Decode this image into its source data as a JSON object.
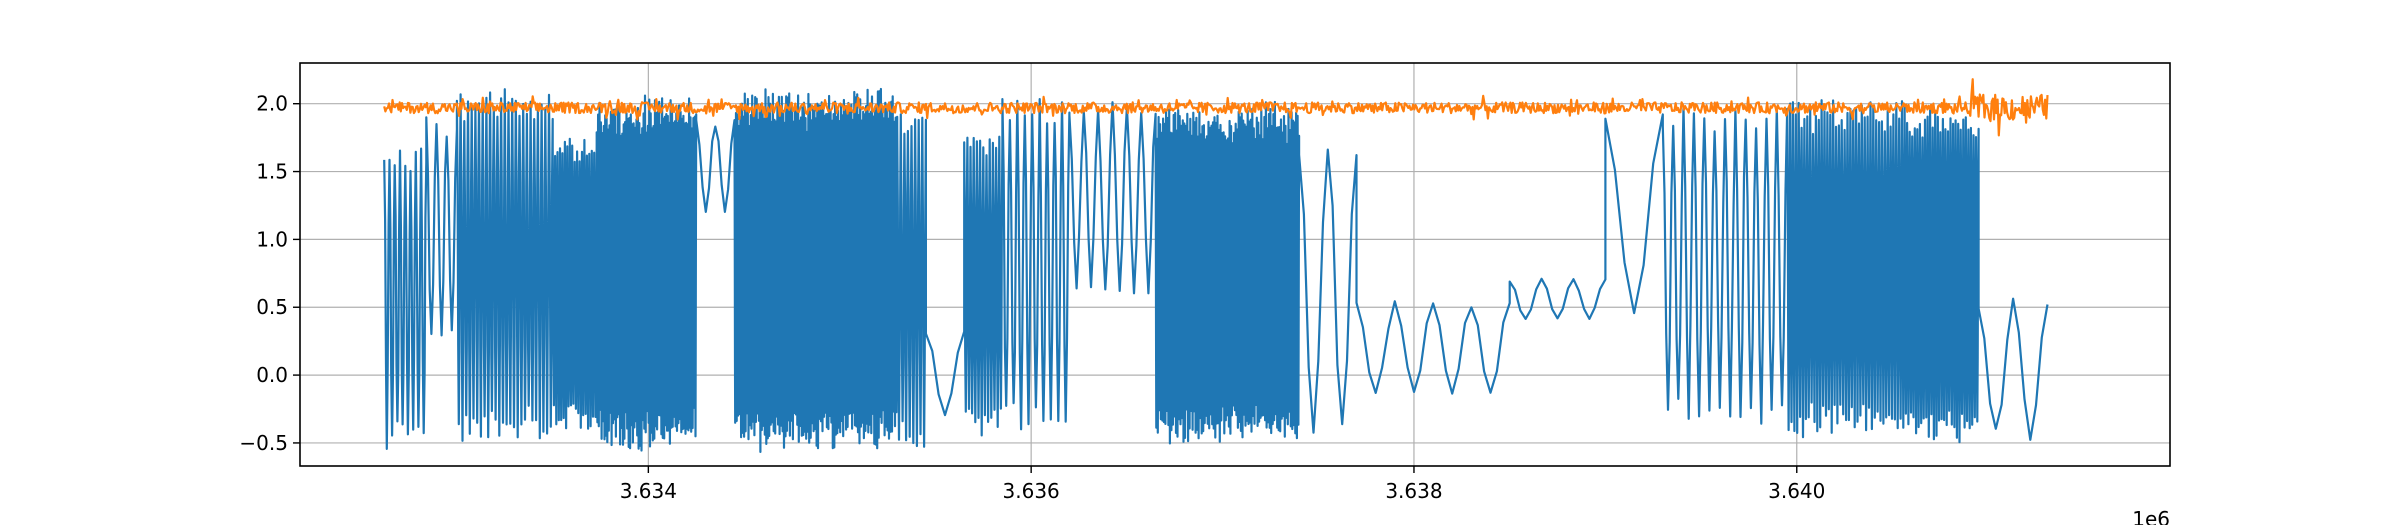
{
  "chart_data": {
    "type": "line",
    "title": "",
    "xlabel": "",
    "ylabel": "",
    "x_offset_text": "1e6",
    "xlim": [
      3632180,
      3641950
    ],
    "ylim": [
      -0.67,
      2.3
    ],
    "grid": true,
    "x_ticks": [
      3634000.0,
      3636000.0,
      3638000.0,
      3640000.0
    ],
    "x_tick_labels": [
      "3.634",
      "3.636",
      "3.638",
      "3.640"
    ],
    "y_ticks": [
      -0.5,
      0.0,
      0.5,
      1.0,
      1.5,
      2.0
    ],
    "y_tick_labels": [
      "−0.5",
      "0.0",
      "0.5",
      "1.0",
      "1.5",
      "2.0"
    ],
    "series": [
      {
        "color": "#1f77b4",
        "style": "dense oscillating signal",
        "envelope": [
          {
            "x_start": 3632620,
            "x_end": 3632840,
            "low": -0.52,
            "high": 1.68,
            "cycles": 8
          },
          {
            "x_start": 3632840,
            "x_end": 3633000,
            "low": 0.25,
            "high": 1.9,
            "cycles": 3
          },
          {
            "x_start": 3633000,
            "x_end": 3633500,
            "low": -0.45,
            "high": 2.1,
            "cycles": 26
          },
          {
            "x_start": 3633500,
            "x_end": 3633730,
            "low": -0.4,
            "high": 1.75,
            "cycles": 18
          },
          {
            "x_start": 3633730,
            "x_end": 3634250,
            "low": -0.5,
            "high": 2.0,
            "cycles": 70
          },
          {
            "x_start": 3634250,
            "x_end": 3634450,
            "low": 1.2,
            "high": 1.9,
            "cycles": 2
          },
          {
            "x_start": 3634450,
            "x_end": 3635300,
            "low": -0.5,
            "high": 2.05,
            "cycles": 110
          },
          {
            "x_start": 3635300,
            "x_end": 3635450,
            "low": -0.55,
            "high": 1.95,
            "cycles": 8
          },
          {
            "x_start": 3635450,
            "x_end": 3635650,
            "low": -0.3,
            "high": 0.35,
            "cycles": 1
          },
          {
            "x_start": 3635650,
            "x_end": 3635850,
            "low": -0.4,
            "high": 1.8,
            "cycles": 12
          },
          {
            "x_start": 3635850,
            "x_end": 3636200,
            "low": -0.4,
            "high": 2.05,
            "cycles": 9
          },
          {
            "x_start": 3636200,
            "x_end": 3636650,
            "low": 0.6,
            "high": 2.0,
            "cycles": 6
          },
          {
            "x_start": 3636650,
            "x_end": 3637400,
            "low": -0.45,
            "high": 1.95,
            "cycles": 95
          },
          {
            "x_start": 3637400,
            "x_end": 3637700,
            "low": -0.48,
            "high": 1.78,
            "cycles": 2
          },
          {
            "x_start": 3637700,
            "x_end": 3638500,
            "low": -0.15,
            "high": 0.55,
            "cycles": 4
          },
          {
            "x_start": 3638500,
            "x_end": 3639000,
            "low": 0.4,
            "high": 0.72,
            "cycles": 3
          },
          {
            "x_start": 3639000,
            "x_end": 3639300,
            "low": 0.45,
            "high": 1.92,
            "cycles": 1
          },
          {
            "x_start": 3639300,
            "x_end": 3639950,
            "low": -0.32,
            "high": 1.98,
            "cycles": 12
          },
          {
            "x_start": 3639950,
            "x_end": 3640550,
            "low": -0.4,
            "high": 2.02,
            "cycles": 40
          },
          {
            "x_start": 3640550,
            "x_end": 3640950,
            "low": -0.45,
            "high": 1.95,
            "cycles": 30
          },
          {
            "x_start": 3640950,
            "x_end": 3641310,
            "low": -0.48,
            "high": 0.58,
            "cycles": 2
          }
        ]
      },
      {
        "color": "#ff7f0e",
        "style": "noisy flat line",
        "x_start": 3632620,
        "x_end": 3641310,
        "mean": 1.97,
        "noise": 0.04
      }
    ]
  }
}
